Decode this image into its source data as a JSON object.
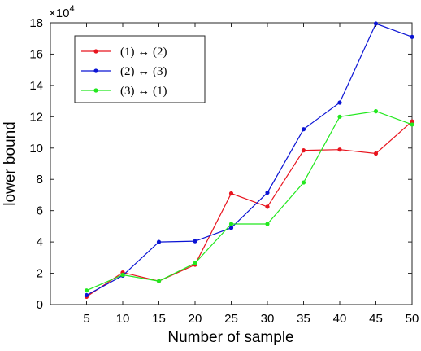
{
  "chart_data": {
    "type": "line",
    "xlabel": "Number of sample",
    "ylabel": "lower bound",
    "y_exponent_label": "×10",
    "y_exponent_power": "4",
    "x": [
      5,
      10,
      15,
      20,
      25,
      30,
      35,
      40,
      45,
      50
    ],
    "xlim": [
      0,
      50
    ],
    "ylim": [
      0,
      18
    ],
    "x_ticks": [
      "5",
      "10",
      "15",
      "20",
      "25",
      "30",
      "35",
      "40",
      "45",
      "50"
    ],
    "y_ticks": [
      "0",
      "2",
      "4",
      "6",
      "8",
      "10",
      "12",
      "14",
      "16",
      "18"
    ],
    "grid": false,
    "legend_position": "top-left",
    "series": [
      {
        "name": "(1) ↔ (2)",
        "color": "#e8141e",
        "values": [
          0.5,
          2.05,
          1.5,
          2.55,
          7.1,
          6.25,
          9.85,
          9.9,
          9.65,
          11.7
        ]
      },
      {
        "name": "(2) ↔ (3)",
        "color": "#0b14d4",
        "values": [
          0.6,
          1.85,
          4.0,
          4.05,
          4.9,
          7.15,
          11.2,
          12.9,
          17.95,
          17.1
        ]
      },
      {
        "name": "(3) ↔ (1)",
        "color": "#22e81e",
        "values": [
          0.9,
          1.9,
          1.5,
          2.65,
          5.15,
          5.15,
          7.8,
          12.0,
          12.35,
          11.5
        ]
      }
    ]
  }
}
